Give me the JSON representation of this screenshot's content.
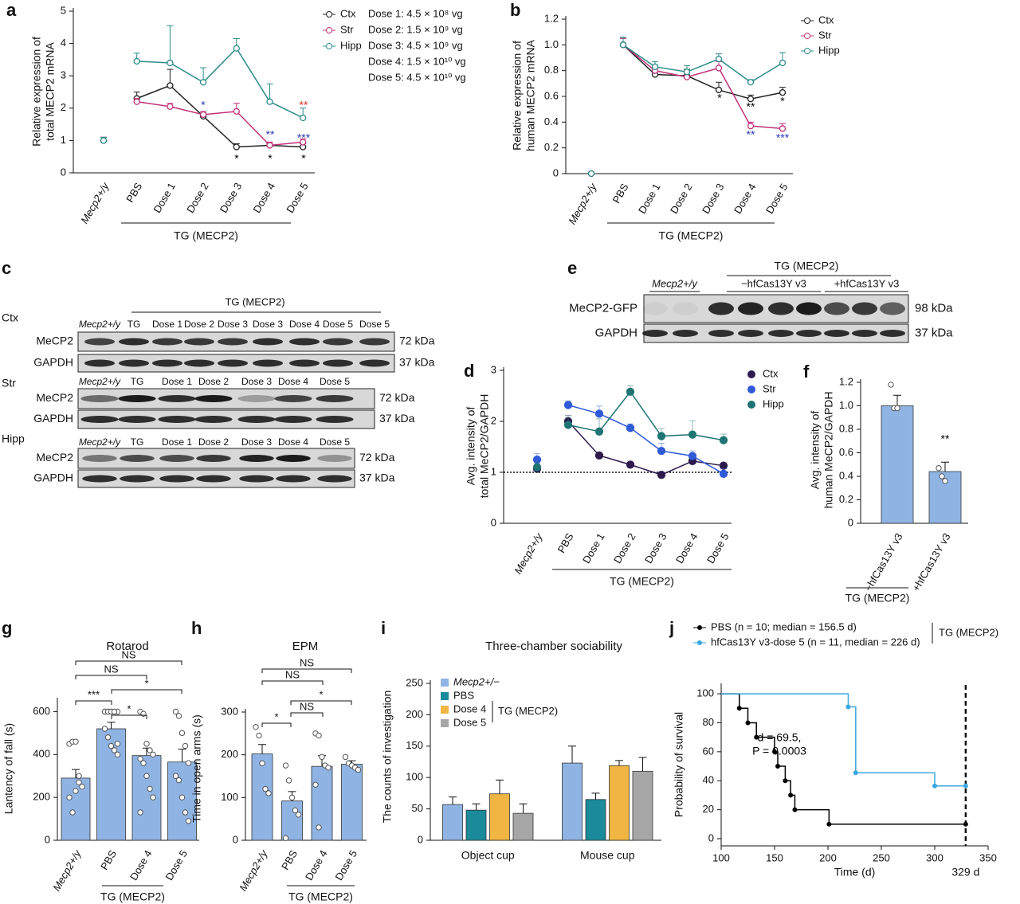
{
  "chart_data": [
    {
      "panel": "a",
      "type": "line",
      "markers": "open",
      "ylabel": [
        "Relative expression of",
        "total MECP2 mRNA"
      ],
      "categories": [
        "Mecp2+/y",
        "PBS",
        "Dose 1",
        "Dose 2",
        "Dose 3",
        "Dose 4",
        "Dose 5"
      ],
      "group_label": "TG (MECP2)",
      "ylim": [
        0,
        5
      ],
      "yticks": [
        0,
        1,
        2,
        3,
        4,
        5
      ],
      "series": [
        {
          "name": "Ctx",
          "color": "#222222",
          "values": [
            1.0,
            2.3,
            2.7,
            1.75,
            0.8,
            0.85,
            0.8
          ],
          "errors": [
            0.1,
            0.2,
            0.5,
            0.1,
            0.1,
            0.05,
            0.1
          ]
        },
        {
          "name": "Str",
          "color": "#c2307a",
          "values": [
            1.0,
            2.2,
            2.05,
            1.8,
            1.9,
            0.85,
            0.95
          ],
          "errors": [
            0.1,
            0.1,
            0.1,
            0.1,
            0.25,
            0.1,
            0.1
          ]
        },
        {
          "name": "Hipp",
          "color": "#2b8c8a",
          "values": [
            1.0,
            3.45,
            3.4,
            2.8,
            3.85,
            2.2,
            1.7
          ],
          "errors": [
            0.1,
            0.25,
            1.15,
            0.45,
            0.3,
            0.55,
            0.3
          ]
        }
      ],
      "notes": [
        "Dose 1: 4.5 × 10⁸ vg",
        "Dose 2: 1.5 × 10⁹ vg",
        "Dose 3: 4.5 × 10⁹ vg",
        "Dose 4: 1.5 × 10¹⁰ vg",
        "Dose 5: 4.5 × 10¹⁰ vg"
      ],
      "annotations": [
        {
          "text": "*",
          "color": "#2b35b5"
        },
        {
          "text": "*",
          "color": "#000000"
        },
        {
          "text": "*",
          "color": "#000000"
        },
        {
          "text": "*",
          "color": "#000000"
        },
        {
          "text": "**",
          "color": "#2b35b5"
        },
        {
          "text": "***",
          "color": "#2b35b5"
        },
        {
          "text": "**",
          "color": "#d9352e"
        }
      ]
    },
    {
      "panel": "b",
      "type": "line",
      "markers": "open",
      "ylabel": [
        "Relative expression of",
        "human MECP2 mRNA"
      ],
      "categories": [
        "Mecp2+/y",
        "PBS",
        "Dose 1",
        "Dose 2",
        "Dose 3",
        "Dose 4",
        "Dose 5"
      ],
      "group_label": "TG (MECP2)",
      "ylim": [
        0,
        1.2
      ],
      "yticks": [
        0,
        0.2,
        0.4,
        0.6,
        0.8,
        {
          "value": 1,
          "label": "1.0"
        },
        1.2
      ],
      "series": [
        {
          "name": "Ctx",
          "color": "#222222",
          "values": [
            0,
            1.0,
            0.77,
            0.76,
            0.65,
            0.58,
            0.63
          ],
          "errors": [
            0.01,
            0.05,
            0.05,
            0.05,
            0.06,
            0.03,
            0.04
          ]
        },
        {
          "name": "Str",
          "color": "#c2307a",
          "values": [
            0,
            1.0,
            0.8,
            0.75,
            0.82,
            0.37,
            0.35
          ],
          "errors": [
            0.01,
            0.05,
            0.04,
            0.04,
            0.05,
            0.03,
            0.04
          ]
        },
        {
          "name": "Hipp",
          "color": "#2b8c8a",
          "values": [
            0,
            1.0,
            0.83,
            0.79,
            0.89,
            0.71,
            0.86
          ],
          "errors": [
            0.01,
            0.06,
            0.04,
            0.05,
            0.04,
            0.02,
            0.08
          ]
        }
      ],
      "annotations": [
        {
          "text": "*",
          "color": "#000000"
        },
        {
          "text": "**",
          "color": "#000000"
        },
        {
          "text": "*",
          "color": "#000000"
        },
        {
          "text": "**",
          "color": "#2b35b5"
        },
        {
          "text": "***",
          "color": "#2b35b5"
        }
      ]
    },
    {
      "panel": "d",
      "type": "line",
      "markers": "filled",
      "ylabel": [
        "Avg. intensity of",
        "total MeCP2/GAPDH"
      ],
      "categories": [
        "Mecp2+/y",
        "PBS",
        "Dose 1",
        "Dose 2",
        "Dose 3",
        "Dose 4",
        "Dose 5"
      ],
      "group_label": "TG (MECP2)",
      "ylim": [
        0,
        3
      ],
      "yticks": [
        0,
        1,
        2,
        3
      ],
      "refline": 1,
      "series": [
        {
          "name": "Ctx",
          "color": "#2d1b4e",
          "values": [
            1.07,
            2.0,
            1.33,
            1.15,
            0.95,
            1.22,
            1.13
          ],
          "errors": [
            0.1,
            0.12,
            0.05,
            0.05,
            0.04,
            0.08,
            0.05
          ]
        },
        {
          "name": "Str",
          "color": "#2f5ad8",
          "values": [
            1.25,
            2.32,
            2.15,
            1.87,
            1.42,
            1.32,
            0.97
          ],
          "errors": [
            0.12,
            0.08,
            0.15,
            0.08,
            0.15,
            0.1,
            0.1
          ]
        },
        {
          "name": "Hipp",
          "color": "#1f7474",
          "values": [
            1.1,
            1.93,
            1.8,
            2.58,
            1.71,
            1.74,
            1.63
          ],
          "errors": [
            0.1,
            0.15,
            0.25,
            0.12,
            0.15,
            0.27,
            0.12
          ]
        }
      ]
    },
    {
      "panel": "f",
      "type": "bar",
      "color": "#8fb4e3",
      "ylabel": [
        "Avg. intensity of",
        "human MeCP2/GAPDH"
      ],
      "categories": [
        "−hfCas13Y v3",
        "+hfCas13Y v3"
      ],
      "group_label": "TG (MECP2)",
      "values": [
        1.0,
        0.44
      ],
      "errors": [
        0.09,
        0.08
      ],
      "points": [
        [
          1.18,
          0.98,
          0.98
        ],
        [
          0.47,
          0.4,
          0.36
        ]
      ],
      "ylim": [
        0,
        1.2
      ],
      "yticks": [
        0,
        0.2,
        0.4,
        0.6,
        0.8,
        {
          "value": 1,
          "label": "1.0"
        },
        1.2
      ],
      "annotations": [
        {
          "text": "**",
          "color": "#000000"
        }
      ]
    },
    {
      "panel": "g",
      "type": "bar",
      "color": "#8fb4e3",
      "title": "Rotarod",
      "ylabel": [
        "Lantency of fall (s)"
      ],
      "categories": [
        "Mecp2+/y",
        "PBS",
        "Dose 4",
        "Dose 5"
      ],
      "group_label": "TG (MECP2)",
      "values": [
        290,
        520,
        395,
        365
      ],
      "errors": [
        40,
        30,
        35,
        60
      ],
      "points": [
        [
          450,
          460,
          460,
          300,
          250,
          200,
          130,
          230,
          270
        ],
        [
          600,
          600,
          600,
          600,
          600,
          600,
          600,
          600,
          600,
          450,
          520,
          480,
          440,
          420,
          400
        ],
        [
          600,
          590,
          450,
          420,
          400,
          380,
          360,
          300,
          240,
          200,
          130
        ],
        [
          600,
          580,
          500,
          440,
          360,
          300,
          280,
          200,
          130,
          90
        ]
      ],
      "ylim": [
        0,
        650
      ],
      "yticks": [
        0,
        200,
        400,
        600
      ],
      "brackets": [
        "NS",
        "NS",
        "*",
        "***",
        "*"
      ]
    },
    {
      "panel": "h",
      "type": "bar",
      "color": "#8fb4e3",
      "title": "EPM",
      "ylabel": [
        "Time in open arms (s)"
      ],
      "categories": [
        "Mecp2+/y",
        "PBS",
        "Dose 4",
        "Dose 5"
      ],
      "group_label": "TG (MECP2)",
      "values": [
        202,
        92,
        173,
        178
      ],
      "errors": [
        22,
        22,
        25,
        8
      ],
      "points": [
        [
          265,
          245,
          180,
          120,
          110
        ],
        [
          175,
          140,
          100,
          70,
          60,
          5
        ],
        [
          250,
          245,
          195,
          175,
          170,
          130,
          30
        ],
        [
          195,
          180,
          175,
          170,
          165
        ]
      ],
      "ylim": [
        0,
        300
      ],
      "yticks": [
        0,
        100,
        200,
        300
      ],
      "brackets": [
        "NS",
        "NS",
        "*",
        "NS",
        "*"
      ]
    },
    {
      "panel": "i",
      "type": "bar",
      "title": "Three-chamber sociability",
      "ylabel": [
        "The counts of investigation"
      ],
      "categories": [
        "Object cup",
        "Mouse cup"
      ],
      "legend_group": "TG (MECP2)",
      "series": [
        {
          "name": "Mecp2+/−",
          "color": "#8fb4e3",
          "values": [
            57,
            123
          ],
          "errors": [
            12,
            27
          ]
        },
        {
          "name": "PBS",
          "color": "#1b8a9a",
          "values": [
            48,
            65
          ],
          "errors": [
            10,
            10
          ]
        },
        {
          "name": "Dose 4",
          "color": "#f0b542",
          "values": [
            74,
            119
          ],
          "errors": [
            22,
            8
          ]
        },
        {
          "name": "Dose 5",
          "color": "#a6a6a6",
          "values": [
            43,
            110
          ],
          "errors": [
            15,
            22
          ]
        }
      ],
      "ylim": [
        0,
        250
      ],
      "yticks": [
        0,
        50,
        100,
        150,
        200,
        250
      ]
    },
    {
      "panel": "j",
      "type": "step",
      "xlabel": "Time (d)",
      "ylabel": [
        "Probability of survival"
      ],
      "legend_group": "TG (MECP2)",
      "xlim": [
        100,
        350
      ],
      "xticks": [
        100,
        150,
        200,
        250,
        300,
        350
      ],
      "ylim": [
        0,
        105
      ],
      "yticks": [
        0,
        20,
        40,
        60,
        80,
        100
      ],
      "cutoff": 329,
      "cutoff_label": "329 d",
      "series": [
        {
          "name": "PBS (n = 10; median = 156.5 d)",
          "color": "#000000",
          "x": [
            100,
            117,
            125,
            133,
            150,
            153,
            160,
            165,
            169,
            201,
            329
          ],
          "values": [
            100,
            90,
            80,
            70,
            60,
            50,
            40,
            30,
            20,
            10,
            10
          ]
        },
        {
          "name": "hfCas13Y v3-dose 5 (n = 11, median = 226 d)",
          "color": "#3ba7e0",
          "x": [
            100,
            219,
            226,
            300,
            329
          ],
          "values": [
            100,
            91,
            45.5,
            36.4,
            36.4
          ]
        }
      ],
      "annotations": [
        {
          "text": "d = 69.5,",
          "color": "#000000"
        },
        {
          "text": "P = 0.0003",
          "color": "#000000"
        }
      ]
    }
  ],
  "western_blots": [
    {
      "panel": "c",
      "header": "TG (MECP2)",
      "tissues": [
        {
          "name": "Ctx",
          "lanes": [
            "Mecp2+/y",
            "TG",
            "Dose 1",
            "Dose 2",
            "Dose 3",
            "Dose 3",
            "Dose 4",
            "Dose 5",
            "Dose 5"
          ],
          "rows": [
            {
              "protein": "MeCP2",
              "size": "72 kDa"
            },
            {
              "protein": "GAPDH",
              "size": "37 kDa"
            }
          ]
        },
        {
          "name": "Str",
          "lanes": [
            "Mecp2+/y",
            "TG",
            "Dose 1",
            "Dose 2",
            "Dose 3",
            "Dose 4",
            "Dose 5"
          ],
          "rows": [
            {
              "protein": "MeCP2",
              "size": "72 kDa"
            },
            {
              "protein": "GAPDH",
              "size": "37 kDa"
            }
          ]
        },
        {
          "name": "Hipp",
          "lanes": [
            "Mecp2+/y",
            "TG",
            "Dose 1",
            "Dose 2",
            "Dose 3",
            "Dose 4",
            "Dose 5"
          ],
          "rows": [
            {
              "protein": "MeCP2",
              "size": "72 kDa"
            },
            {
              "protein": "GAPDH",
              "size": "37 kDa"
            }
          ]
        }
      ]
    },
    {
      "panel": "e",
      "header": "TG (MECP2)",
      "groups": [
        "Mecp2+/y",
        "−hfCas13Y v3",
        "+hfCas13Y v3"
      ],
      "rows": [
        {
          "protein": "MeCP2-GFP",
          "size": "98 kDa"
        },
        {
          "protein": "GAPDH",
          "size": "37 kDa"
        }
      ]
    }
  ]
}
